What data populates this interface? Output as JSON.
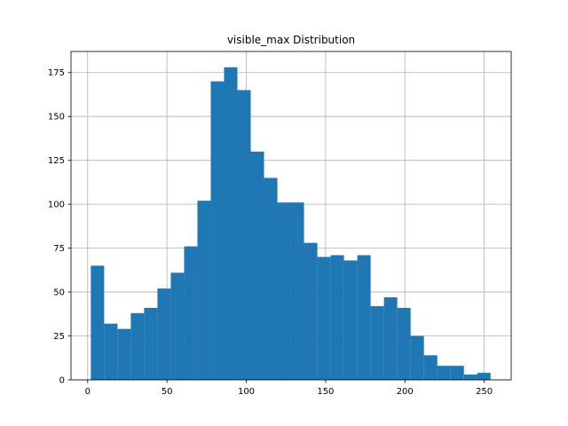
{
  "chart_data": {
    "type": "bar",
    "title": "visible_max Distribution",
    "xlabel": "",
    "ylabel": "",
    "xlim": [
      -10.5,
      267
    ],
    "ylim": [
      0,
      187
    ],
    "x_ticks": [
      0,
      50,
      100,
      150,
      200,
      250
    ],
    "y_ticks": [
      0,
      25,
      50,
      75,
      100,
      125,
      150,
      175
    ],
    "grid": true,
    "bar_color": "#1f77b4",
    "grid_color": "#b0b0b0",
    "bins": [
      {
        "x0": 2,
        "x1": 10.4,
        "count": 65
      },
      {
        "x0": 10.4,
        "x1": 18.8,
        "count": 32
      },
      {
        "x0": 18.8,
        "x1": 27.2,
        "count": 29
      },
      {
        "x0": 27.2,
        "x1": 35.6,
        "count": 38
      },
      {
        "x0": 35.6,
        "x1": 44,
        "count": 41
      },
      {
        "x0": 44,
        "x1": 52.4,
        "count": 52
      },
      {
        "x0": 52.4,
        "x1": 60.8,
        "count": 61
      },
      {
        "x0": 60.8,
        "x1": 69.2,
        "count": 76
      },
      {
        "x0": 69.2,
        "x1": 77.6,
        "count": 102
      },
      {
        "x0": 77.6,
        "x1": 86,
        "count": 170
      },
      {
        "x0": 86,
        "x1": 94.4,
        "count": 178
      },
      {
        "x0": 94.4,
        "x1": 102.8,
        "count": 165
      },
      {
        "x0": 102.8,
        "x1": 111.2,
        "count": 130
      },
      {
        "x0": 111.2,
        "x1": 119.6,
        "count": 115
      },
      {
        "x0": 119.6,
        "x1": 128,
        "count": 101
      },
      {
        "x0": 128,
        "x1": 136.4,
        "count": 101
      },
      {
        "x0": 136.4,
        "x1": 144.8,
        "count": 78
      },
      {
        "x0": 144.8,
        "x1": 153.2,
        "count": 70
      },
      {
        "x0": 153.2,
        "x1": 161.6,
        "count": 71
      },
      {
        "x0": 161.6,
        "x1": 170,
        "count": 68
      },
      {
        "x0": 170,
        "x1": 178.4,
        "count": 71
      },
      {
        "x0": 178.4,
        "x1": 186.8,
        "count": 42
      },
      {
        "x0": 186.8,
        "x1": 195.2,
        "count": 47
      },
      {
        "x0": 195.2,
        "x1": 203.6,
        "count": 41
      },
      {
        "x0": 203.6,
        "x1": 212,
        "count": 25
      },
      {
        "x0": 212,
        "x1": 220.4,
        "count": 14
      },
      {
        "x0": 220.4,
        "x1": 228.8,
        "count": 8
      },
      {
        "x0": 228.8,
        "x1": 237.2,
        "count": 8
      },
      {
        "x0": 237.2,
        "x1": 245.6,
        "count": 3
      },
      {
        "x0": 245.6,
        "x1": 254,
        "count": 4
      }
    ]
  }
}
